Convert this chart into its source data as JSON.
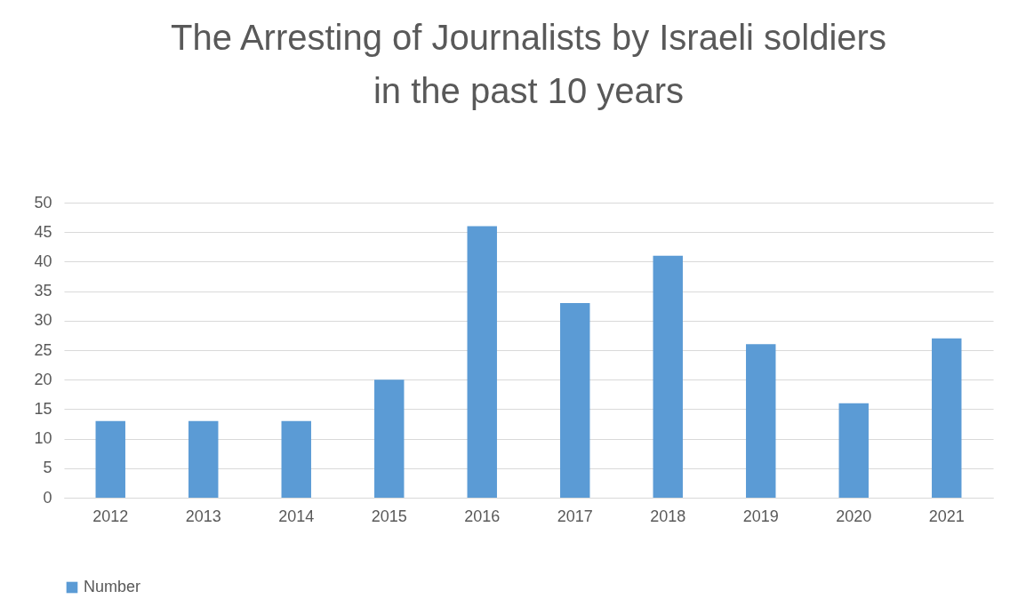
{
  "chart_data": {
    "type": "bar",
    "title": "The Arresting of Journalists by Israeli soldiers\nin the past 10 years",
    "categories": [
      "2012",
      "2013",
      "2014",
      "2015",
      "2016",
      "2017",
      "2018",
      "2019",
      "2020",
      "2021"
    ],
    "series": [
      {
        "name": "Number",
        "color": "#5b9bd5",
        "values": [
          13,
          13,
          13,
          20,
          46,
          33,
          41,
          26,
          16,
          27
        ]
      }
    ],
    "ylim": [
      0,
      50
    ],
    "yticks": [
      0,
      5,
      10,
      15,
      20,
      25,
      30,
      35,
      40,
      45,
      50
    ],
    "grid": "y",
    "legend": "bottom"
  }
}
